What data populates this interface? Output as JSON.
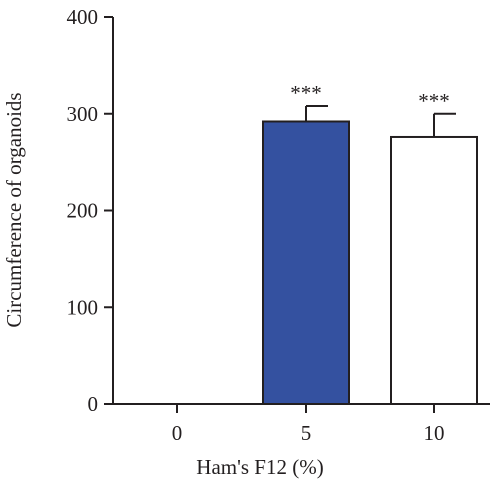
{
  "chart_data": {
    "type": "bar",
    "categories": [
      "0",
      "5",
      "10"
    ],
    "values": [
      0,
      292,
      276
    ],
    "errors": [
      0,
      16,
      24
    ],
    "significance": [
      "",
      "***",
      "***"
    ],
    "bar_colors": [
      "#ffffff",
      "#3451a0",
      "#ffffff"
    ],
    "bar_stroke": "#231f20",
    "title": "",
    "xlabel": "Ham's F12 (%)",
    "ylabel": "Circumference of organoids",
    "ylim": [
      0,
      400
    ],
    "yticks": [
      0,
      100,
      200,
      300,
      400
    ],
    "grid": false,
    "legend": "none"
  }
}
